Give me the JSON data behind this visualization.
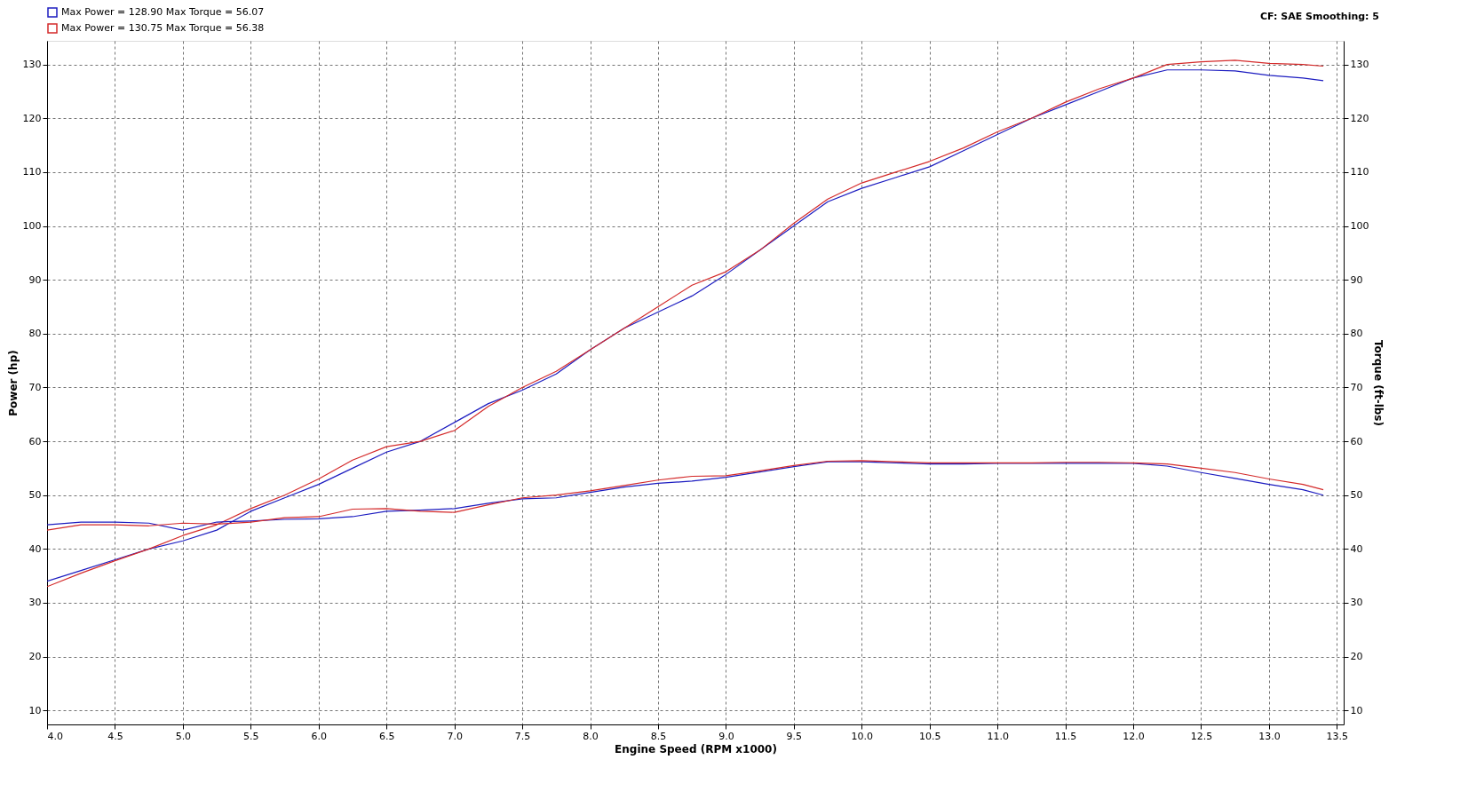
{
  "chart_data": {
    "type": "line",
    "xlabel": "Engine Speed (RPM x1000)",
    "ylabel": "Power (hp)",
    "y2label": "Torque (ft-lbs)",
    "annotations": [
      "CF: SAE  Smoothing: 5"
    ],
    "x": [
      4.0,
      4.25,
      4.5,
      4.75,
      5.0,
      5.25,
      5.5,
      5.75,
      6.0,
      6.25,
      6.5,
      6.75,
      7.0,
      7.25,
      7.5,
      7.75,
      8.0,
      8.25,
      8.5,
      8.75,
      9.0,
      9.25,
      9.5,
      9.75,
      10.0,
      10.25,
      10.5,
      10.75,
      11.0,
      11.25,
      11.5,
      11.75,
      12.0,
      12.25,
      12.5,
      12.75,
      13.0,
      13.25,
      13.4
    ],
    "series": [
      {
        "name": "Max Power = 128.90    Max Torque = 56.07",
        "color": "#1c1cc0",
        "values": [
          34,
          36,
          38,
          40,
          41.5,
          43.5,
          47,
          49.5,
          52,
          55,
          58,
          60,
          63.5,
          67,
          69.5,
          72.5,
          77,
          81,
          84,
          87,
          91,
          95.5,
          100,
          104.5,
          107,
          109,
          111,
          114,
          117,
          120,
          122.5,
          125,
          127.5,
          129,
          129,
          128.8,
          128,
          127.5,
          127
        ]
      },
      {
        "name": "Max Power = 130.75    Max Torque = 56.38",
        "color": "#d42a2a",
        "values": [
          33,
          35.5,
          37.8,
          40,
          42.5,
          44.5,
          47.5,
          50,
          53,
          56.5,
          59,
          60,
          62,
          66.5,
          70,
          73,
          77,
          81,
          85,
          89,
          91.5,
          95.5,
          100.5,
          105,
          108,
          110,
          112,
          114.5,
          117.5,
          120,
          123,
          125.5,
          127.5,
          130,
          130.5,
          130.8,
          130.2,
          130,
          129.7
        ]
      },
      {
        "color": "#1c1cc0",
        "axis": "y2",
        "values": [
          44.5,
          45,
          45,
          44.8,
          43.5,
          45,
          45.2,
          45.5,
          45.6,
          46,
          47,
          47.2,
          47.5,
          48.5,
          49.3,
          49.5,
          50.5,
          51.5,
          52.2,
          52.6,
          53.3,
          54.3,
          55.3,
          56.2,
          56.2,
          56,
          55.8,
          55.8,
          55.9,
          55.9,
          55.9,
          55.9,
          55.9,
          55.4,
          54.2,
          53.1,
          52,
          51,
          50
        ]
      },
      {
        "color": "#d42a2a",
        "axis": "y2",
        "values": [
          43.5,
          44.5,
          44.5,
          44.3,
          44.8,
          44.6,
          45,
          45.8,
          46,
          47.4,
          47.5,
          47,
          46.8,
          48.2,
          49.5,
          50,
          50.8,
          51.8,
          52.8,
          53.5,
          53.6,
          54.5,
          55.5,
          56.3,
          56.4,
          56.2,
          56,
          56,
          56,
          56,
          56.1,
          56.1,
          56,
          55.8,
          55,
          54.2,
          53,
          52,
          51
        ]
      }
    ],
    "xlim": [
      4.0,
      13.55
    ],
    "ylim": [
      7.4,
      134.4
    ],
    "y2lim": [
      7.4,
      134.4
    ],
    "xticks": [
      {
        "value": 4,
        "label": "4.0"
      },
      4.5,
      {
        "value": 5,
        "label": "5.0"
      },
      5.5,
      {
        "value": 6,
        "label": "6.0"
      },
      6.5,
      {
        "value": 7,
        "label": "7.0"
      },
      7.5,
      {
        "value": 8,
        "label": "8.0"
      },
      8.5,
      {
        "value": 9,
        "label": "9.0"
      },
      9.5,
      {
        "value": 10,
        "label": "10.0"
      },
      10.5,
      {
        "value": 11,
        "label": "11.0"
      },
      11.5,
      {
        "value": 12,
        "label": "12.0"
      },
      12.5,
      {
        "value": 13,
        "label": "13.0"
      },
      13.5
    ],
    "yticks": [
      10,
      20,
      30,
      40,
      50,
      60,
      70,
      80,
      90,
      100,
      110,
      120,
      130
    ],
    "y2ticks": [
      10,
      20,
      30,
      40,
      50,
      60,
      70,
      80,
      90,
      100,
      110,
      120,
      130
    ],
    "grid": true,
    "legend": "top left",
    "marker": "none",
    "line_style": "solid"
  }
}
